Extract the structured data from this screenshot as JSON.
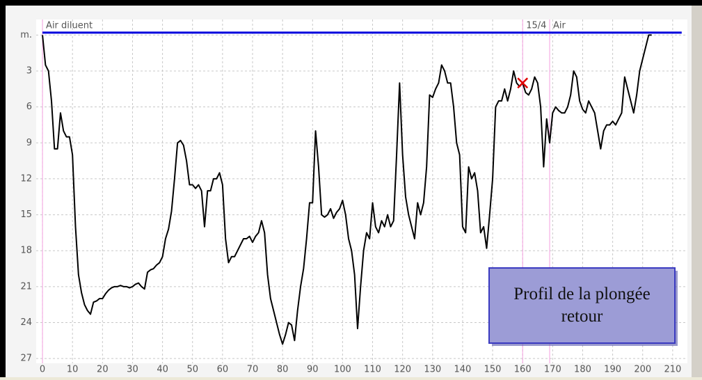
{
  "chart_data": {
    "type": "line",
    "xlim": [
      -2.1,
      214.9
    ],
    "ylim": [
      -1.3,
      27.4
    ],
    "y_inverted": true,
    "grid": true,
    "xticks": [
      0,
      10,
      20,
      30,
      40,
      50,
      60,
      70,
      80,
      90,
      100,
      110,
      120,
      130,
      140,
      150,
      160,
      170,
      180,
      190,
      200,
      210
    ],
    "yticks": [
      {
        "value": 0,
        "label": "m."
      },
      3,
      6,
      9,
      12,
      15,
      18,
      21,
      24,
      27
    ],
    "annotations": [
      {
        "x": 0,
        "text": "Air diluent"
      },
      {
        "x": 160,
        "text": "15/4"
      },
      {
        "x": 169,
        "text": "Air"
      }
    ],
    "marker": {
      "x": 160,
      "y": 4,
      "color": "#e00000"
    },
    "note_box": {
      "text": "Profil de la plongée retour"
    },
    "series": [
      {
        "color": "#000000",
        "x": [
          0,
          1,
          2,
          3,
          4,
          5,
          6,
          7,
          8,
          9,
          10,
          11,
          12,
          13,
          14,
          15,
          16,
          17,
          18,
          19,
          20,
          21,
          22,
          23,
          24,
          25,
          26,
          27,
          28,
          29,
          30,
          31,
          32,
          33,
          34,
          35,
          36,
          37,
          38,
          39,
          40,
          41,
          42,
          43,
          44,
          45,
          46,
          47,
          48,
          49,
          50,
          51,
          52,
          53,
          54,
          55,
          56,
          57,
          58,
          59,
          60,
          61,
          62,
          63,
          64,
          65,
          66,
          67,
          68,
          69,
          70,
          71,
          72,
          73,
          74,
          75,
          76,
          77,
          78,
          79,
          80,
          81,
          82,
          83,
          84,
          85,
          86,
          87,
          88,
          89,
          90,
          91,
          92,
          93,
          94,
          95,
          96,
          97,
          98,
          99,
          100,
          101,
          102,
          103,
          104,
          105,
          106,
          107,
          108,
          109,
          110,
          111,
          112,
          113,
          114,
          115,
          116,
          117,
          118,
          119,
          120,
          121,
          122,
          123,
          124,
          125,
          126,
          127,
          128,
          129,
          130,
          131,
          132,
          133,
          134,
          135,
          136,
          137,
          138,
          139,
          140,
          141,
          142,
          143,
          144,
          145,
          146,
          147,
          148,
          149,
          150,
          151,
          152,
          153,
          154,
          155,
          156,
          157,
          158,
          159,
          160,
          161,
          162,
          163,
          164,
          165,
          166,
          167,
          168,
          169,
          170,
          171,
          172,
          173,
          174,
          175,
          176,
          177,
          178,
          179,
          180,
          181,
          182,
          183,
          184,
          185,
          186,
          187,
          188,
          189,
          190,
          191,
          192,
          193,
          194,
          195,
          196,
          197,
          198,
          199,
          200,
          201,
          202,
          203
        ],
        "values": [
          0,
          2.5,
          3,
          5.5,
          9.5,
          9.5,
          6.5,
          8,
          8.5,
          8.5,
          10,
          16,
          20,
          21.5,
          22.5,
          23,
          23.3,
          22.3,
          22.2,
          22,
          22,
          21.6,
          21.3,
          21.1,
          21,
          21,
          20.9,
          21,
          21,
          21.1,
          21,
          20.8,
          20.7,
          21,
          21.2,
          19.8,
          19.6,
          19.5,
          19.2,
          19,
          18.5,
          17,
          16.2,
          14.7,
          12,
          9,
          8.8,
          9.2,
          10.5,
          12.5,
          12.5,
          12.8,
          12.5,
          13,
          16,
          13,
          13,
          12,
          12,
          11.5,
          12.5,
          17,
          19,
          18.5,
          18.5,
          18,
          17.5,
          17,
          17,
          16.8,
          17.3,
          16.8,
          16.5,
          15.5,
          16.5,
          20,
          22,
          23,
          24,
          25,
          25.8,
          25,
          24,
          24.2,
          25.5,
          23,
          21,
          19.5,
          17,
          14,
          14,
          8,
          11,
          15,
          15.2,
          15,
          14.5,
          15.3,
          14.8,
          14.5,
          13.8,
          15,
          17,
          18,
          20,
          24.5,
          21,
          18,
          16.5,
          17,
          14,
          16,
          16.5,
          15.5,
          16,
          15,
          16,
          15.5,
          10,
          4,
          10,
          13.5,
          15,
          16,
          17,
          14,
          15,
          14,
          11,
          5,
          5.2,
          4.5,
          4,
          2.5,
          3,
          4,
          4,
          6,
          9,
          10,
          16,
          16.5,
          11,
          12,
          11.5,
          13,
          16.5,
          16,
          17.8,
          15,
          12,
          6,
          5.5,
          5.5,
          4.5,
          5.5,
          4.5,
          3,
          4,
          4.3,
          4,
          4.8,
          5,
          4.5,
          3.5,
          4,
          6,
          11,
          7,
          9,
          6.5,
          6,
          6.3,
          6.5,
          6.5,
          6,
          5,
          3,
          3.5,
          5.5,
          6.2,
          6.5,
          5.5,
          6,
          6.5,
          8,
          9.5,
          8,
          7.5,
          7.5,
          7.2,
          7.5,
          7,
          6.5,
          3.5,
          4.5,
          5.5,
          6.5,
          5,
          3,
          2,
          1,
          0,
          0
        ]
      },
      {
        "color": "#0000dd",
        "x": [
          0,
          213
        ],
        "values": [
          -0.2,
          -0.2
        ]
      }
    ]
  }
}
